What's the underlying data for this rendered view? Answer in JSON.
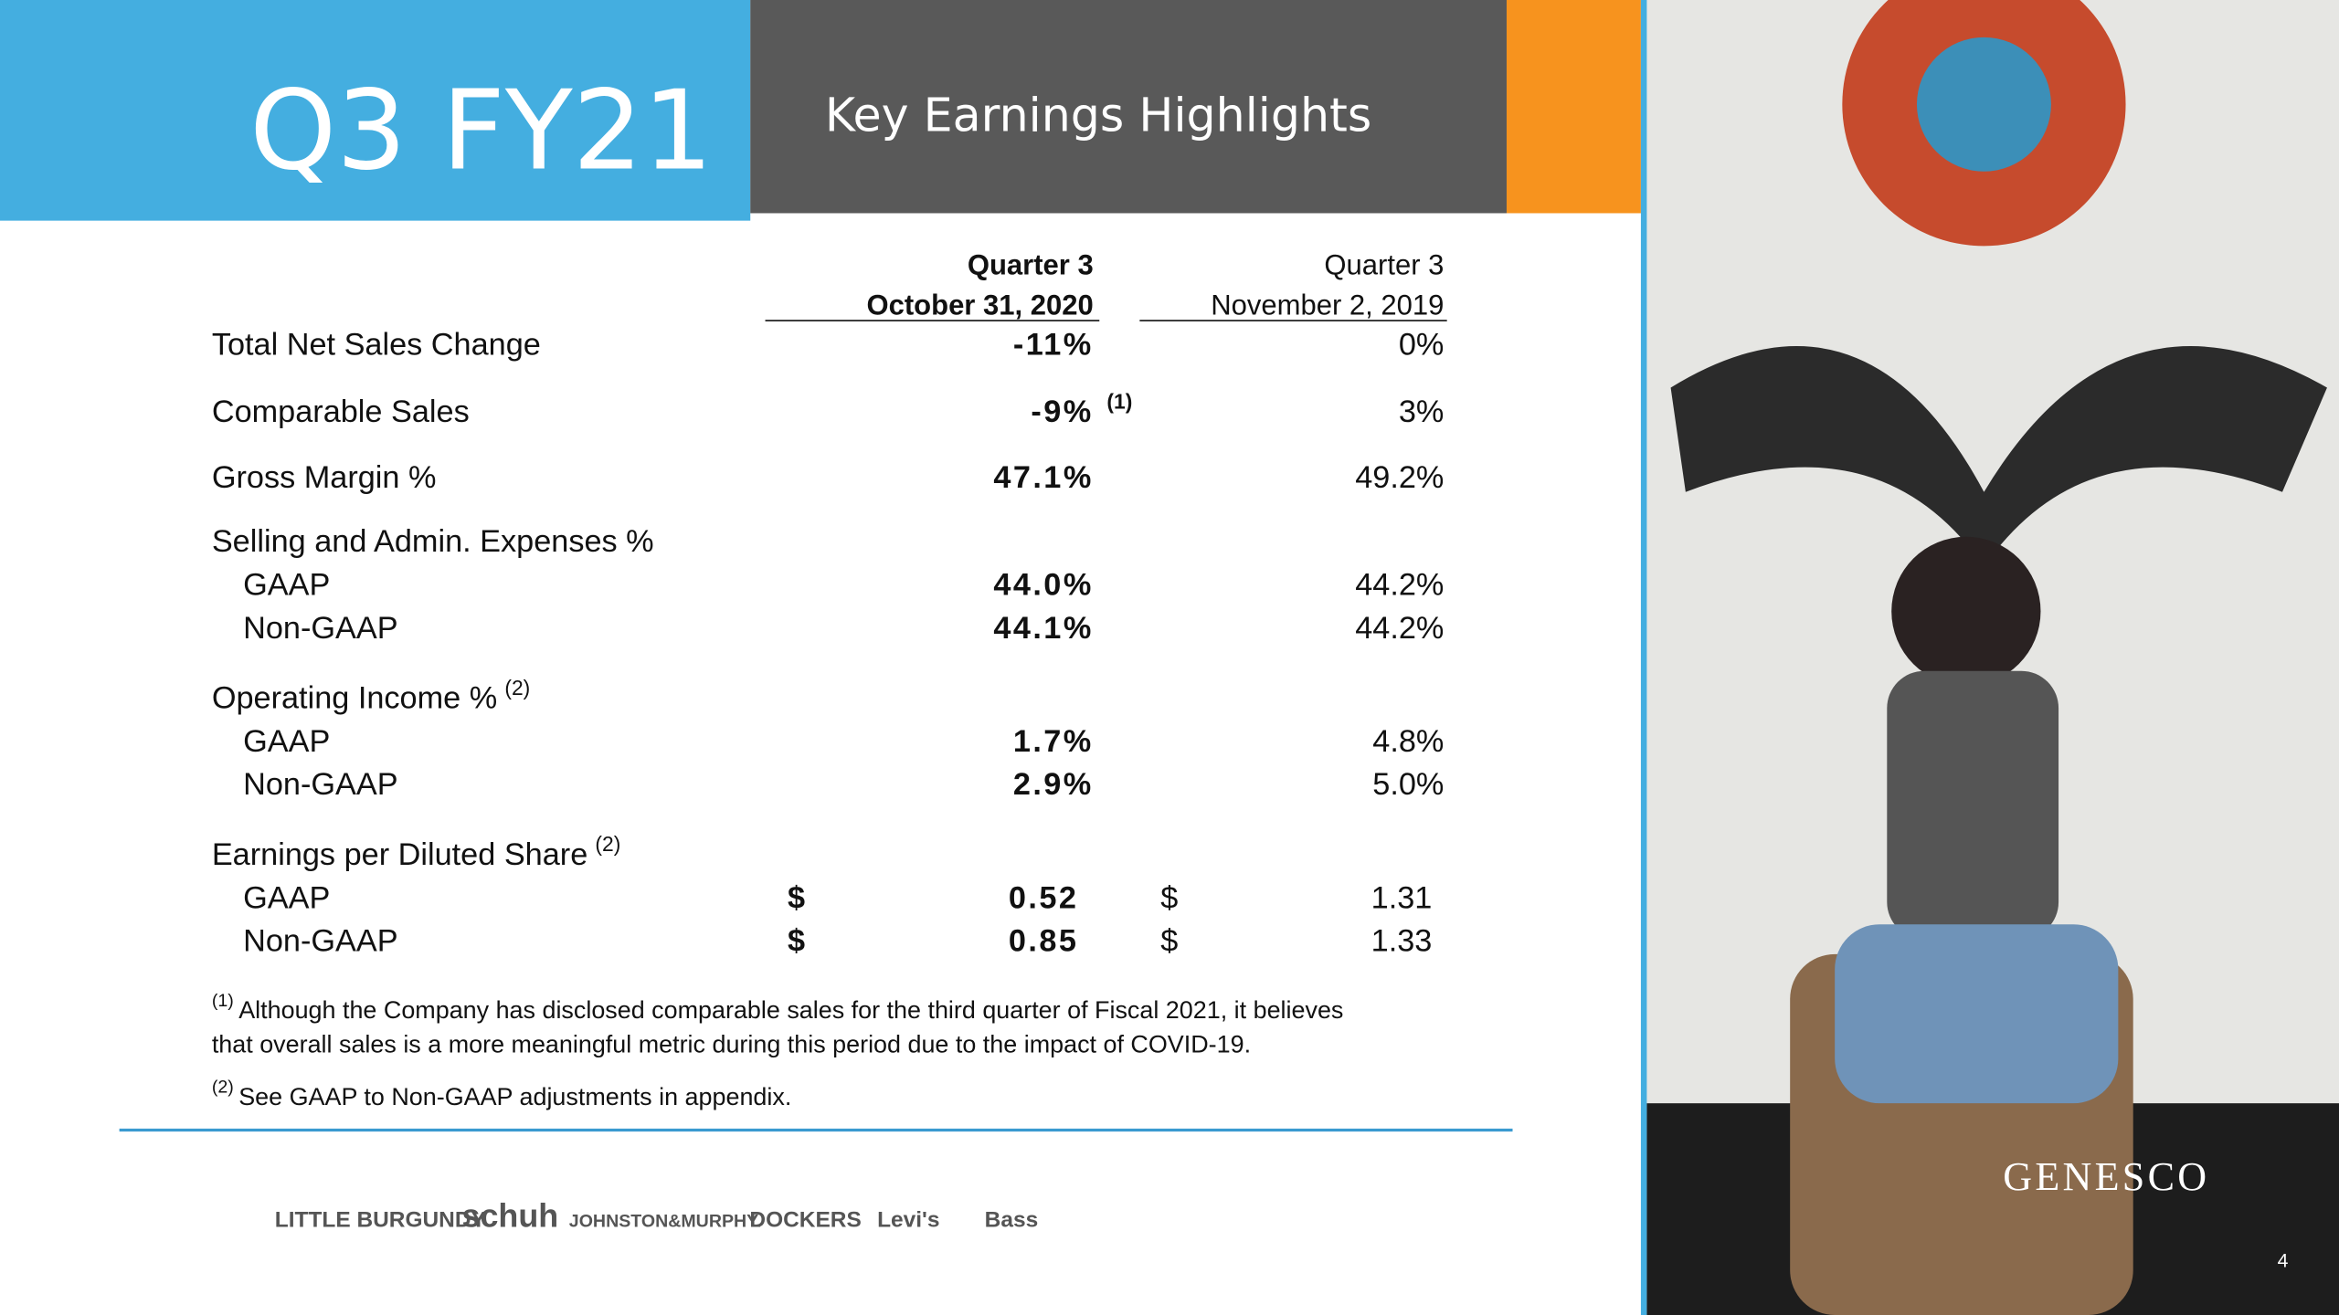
{
  "header": {
    "title": "Q3 FY21",
    "subtitle": "Key Earnings Highlights"
  },
  "table": {
    "columns": [
      {
        "line1": "Quarter 3",
        "line2": "October 31, 2020"
      },
      {
        "line1": "Quarter 3",
        "line2": "November 2, 2019"
      }
    ],
    "rows": [
      {
        "label": "Total Net Sales Change",
        "current": "-11%",
        "prior": "0%"
      },
      {
        "label": "Comparable Sales",
        "current": "-9%",
        "note": "(1)",
        "prior": "3%"
      },
      {
        "label": "Gross Margin %",
        "current": "47.1%",
        "prior": "49.2%"
      },
      {
        "label": "Selling and Admin. Expenses %"
      },
      {
        "label": "GAAP",
        "current": "44.0%",
        "prior": "44.2%"
      },
      {
        "label": "Non-GAAP",
        "current": "44.1%",
        "prior": "44.2%"
      },
      {
        "label": "Operating Income %",
        "label_note": "(2)"
      },
      {
        "label": "GAAP",
        "current": "1.7%",
        "prior": "4.8%"
      },
      {
        "label": "Non-GAAP",
        "current": "2.9%",
        "prior": "5.0%"
      },
      {
        "label": "Earnings per Diluted Share",
        "label_note": "(2)"
      },
      {
        "label": "GAAP",
        "currency": "$",
        "current": "0.52",
        "prior_currency": "$",
        "prior": "1.31"
      },
      {
        "label": "Non-GAAP",
        "currency": "$",
        "current": "0.85",
        "prior_currency": "$",
        "prior": "1.33"
      }
    ]
  },
  "footnotes": [
    {
      "mark": "(1)",
      "lines": [
        "Although the Company has disclosed comparable sales for the third quarter of Fiscal 2021, it believes",
        "that overall sales is a more meaningful metric during this period due to the impact of COVID-19."
      ]
    },
    {
      "mark": "(2)",
      "lines": [
        "See GAAP to Non-GAAP adjustments in appendix."
      ]
    }
  ],
  "brands": [
    "LITTLE BURGUNDY",
    "schuh",
    "JOHNSTON&MURPHY.",
    "DOCKERS",
    "Levi's",
    "Bass"
  ],
  "logo": "GENESCO",
  "page_number": "4"
}
